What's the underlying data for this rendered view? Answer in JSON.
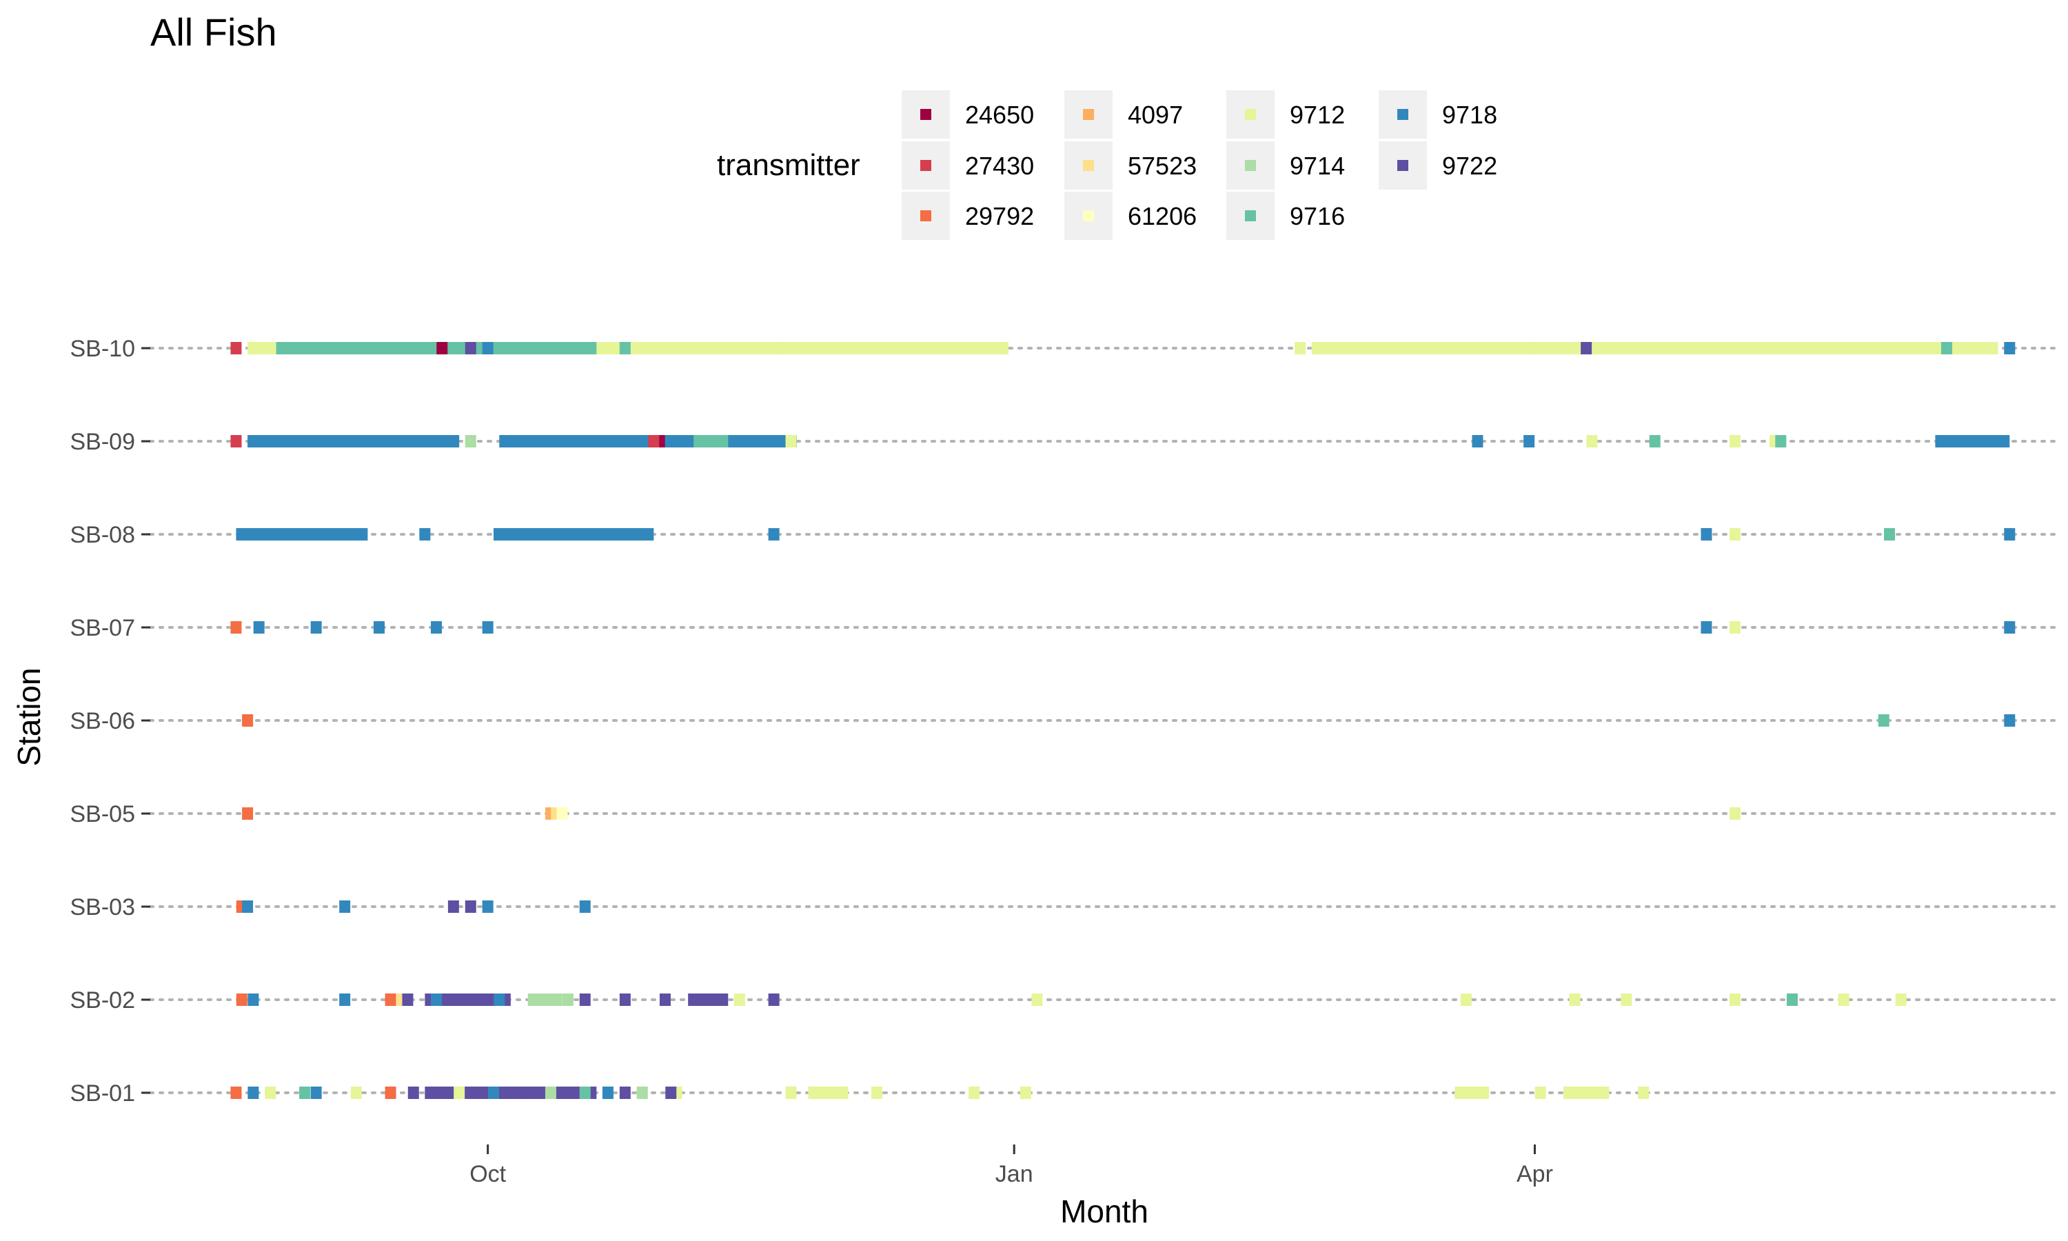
{
  "chart_data": {
    "type": "scatter",
    "title": "All Fish",
    "xlabel": "Month",
    "ylabel": "Station",
    "x_ticks": [
      "Oct",
      "Jan",
      "Apr"
    ],
    "x_axis_range": [
      "2019-08-03",
      "2020-07-02"
    ],
    "categories": [
      "SB-10",
      "SB-09",
      "SB-08",
      "SB-07",
      "SB-06",
      "SB-05",
      "SB-03",
      "SB-02",
      "SB-01"
    ],
    "grid": "horizontal dotted",
    "legend": {
      "title": "transmitter",
      "placement": "top"
    },
    "series": [
      {
        "name": "24650",
        "color": "#9E0142",
        "points": [
          {
            "s": "SB-10",
            "x": "2019-09-23"
          },
          {
            "s": "SB-09",
            "x": "2019-08-18"
          },
          {
            "s": "SB-09",
            "x": "2019-10-31"
          },
          {
            "s": "SB-01",
            "x": "2019-08-18"
          }
        ]
      },
      {
        "name": "27430",
        "color": "#D53E4F",
        "points": [
          {
            "s": "SB-10",
            "x": "2019-08-18"
          },
          {
            "s": "SB-09",
            "x": "2019-08-18"
          },
          {
            "s": "SB-09",
            "x": "2019-10-30"
          }
        ]
      },
      {
        "name": "29792",
        "color": "#F46D43",
        "points": [
          {
            "s": "SB-07",
            "x": "2019-08-18"
          },
          {
            "s": "SB-06",
            "x": "2019-08-20"
          },
          {
            "s": "SB-05",
            "x": "2019-08-20"
          },
          {
            "s": "SB-03",
            "x": "2019-08-19"
          },
          {
            "s": "SB-02",
            "x": "2019-08-19"
          },
          {
            "s": "SB-02",
            "x": "2019-09-14"
          },
          {
            "s": "SB-01",
            "x": "2019-08-18"
          },
          {
            "s": "SB-01",
            "x": "2019-09-14"
          }
        ]
      },
      {
        "name": "4097",
        "color": "#FDAE61",
        "points": [
          {
            "s": "SB-05",
            "x": "2019-10-12"
          }
        ]
      },
      {
        "name": "57523",
        "color": "#FEE08B",
        "points": [
          {
            "s": "SB-05",
            "x": "2019-10-13"
          },
          {
            "s": "SB-02",
            "x": "2019-09-16"
          }
        ]
      },
      {
        "name": "61206",
        "color": "#FFFFBF",
        "points": [
          {
            "s": "SB-05",
            "x": "2019-10-14"
          }
        ]
      },
      {
        "name": "9712",
        "color": "#E6F598",
        "points": [
          {
            "s": "SB-10",
            "x": "2019-11-20"
          },
          {
            "s": "SB-10",
            "x": "2019-12-05"
          },
          {
            "s": "SB-10",
            "x": "2019-12-20"
          },
          {
            "s": "SB-10",
            "x": "2020-02-20"
          },
          {
            "s": "SB-10",
            "x": "2020-03-10"
          },
          {
            "s": "SB-10",
            "x": "2020-04-01"
          },
          {
            "s": "SB-10",
            "x": "2020-04-20"
          },
          {
            "s": "SB-10",
            "x": "2020-05-10"
          },
          {
            "s": "SB-10",
            "x": "2020-06-01"
          },
          {
            "s": "SB-10",
            "x": "2020-06-20"
          },
          {
            "s": "SB-09",
            "x": "2019-11-23"
          },
          {
            "s": "SB-09",
            "x": "2020-04-11"
          },
          {
            "s": "SB-09",
            "x": "2020-05-06"
          },
          {
            "s": "SB-09",
            "x": "2020-05-13"
          },
          {
            "s": "SB-08",
            "x": "2020-05-06"
          },
          {
            "s": "SB-07",
            "x": "2020-05-06"
          },
          {
            "s": "SB-05",
            "x": "2020-05-06"
          },
          {
            "s": "SB-02",
            "x": "2019-11-14"
          },
          {
            "s": "SB-02",
            "x": "2020-01-05"
          },
          {
            "s": "SB-02",
            "x": "2020-03-20"
          },
          {
            "s": "SB-02",
            "x": "2020-04-08"
          },
          {
            "s": "SB-02",
            "x": "2020-04-17"
          },
          {
            "s": "SB-02",
            "x": "2020-05-06"
          },
          {
            "s": "SB-02",
            "x": "2020-05-25"
          },
          {
            "s": "SB-02",
            "x": "2020-06-04"
          },
          {
            "s": "SB-01",
            "x": "2019-08-24"
          },
          {
            "s": "SB-01",
            "x": "2019-09-08"
          },
          {
            "s": "SB-01",
            "x": "2019-09-26"
          },
          {
            "s": "SB-01",
            "x": "2019-11-03"
          },
          {
            "s": "SB-01",
            "x": "2019-11-23"
          },
          {
            "s": "SB-01",
            "x": "2019-12-08"
          },
          {
            "s": "SB-01",
            "x": "2019-12-25"
          },
          {
            "s": "SB-01",
            "x": "2020-01-03"
          },
          {
            "s": "SB-01",
            "x": "2020-03-20"
          },
          {
            "s": "SB-01",
            "x": "2020-04-02"
          },
          {
            "s": "SB-01",
            "x": "2020-04-12"
          },
          {
            "s": "SB-01",
            "x": "2020-04-20"
          }
        ]
      },
      {
        "name": "9714",
        "color": "#ABDDA4",
        "points": [
          {
            "s": "SB-09",
            "x": "2019-09-28"
          },
          {
            "s": "SB-02",
            "x": "2019-10-15"
          },
          {
            "s": "SB-01",
            "x": "2019-10-12"
          },
          {
            "s": "SB-01",
            "x": "2019-10-28"
          }
        ]
      },
      {
        "name": "9716",
        "color": "#66C2A5",
        "points": [
          {
            "s": "SB-10",
            "x": "2019-09-01"
          },
          {
            "s": "SB-10",
            "x": "2019-10-25"
          },
          {
            "s": "SB-10",
            "x": "2020-06-12"
          },
          {
            "s": "SB-09",
            "x": "2019-11-10"
          },
          {
            "s": "SB-09",
            "x": "2020-04-22"
          },
          {
            "s": "SB-09",
            "x": "2020-05-14"
          },
          {
            "s": "SB-06",
            "x": "2020-06-01"
          },
          {
            "s": "SB-08",
            "x": "2020-06-02"
          },
          {
            "s": "SB-02",
            "x": "2020-05-16"
          },
          {
            "s": "SB-01",
            "x": "2019-08-30"
          },
          {
            "s": "SB-01",
            "x": "2019-10-18"
          }
        ]
      },
      {
        "name": "9718",
        "color": "#3288BD",
        "points": [
          {
            "s": "SB-10",
            "x": "2019-10-01"
          },
          {
            "s": "SB-10",
            "x": "2020-06-23"
          },
          {
            "s": "SB-09",
            "x": "2019-09-01"
          },
          {
            "s": "SB-09",
            "x": "2019-09-20"
          },
          {
            "s": "SB-09",
            "x": "2019-10-15"
          },
          {
            "s": "SB-09",
            "x": "2019-11-05"
          },
          {
            "s": "SB-09",
            "x": "2019-11-15"
          },
          {
            "s": "SB-09",
            "x": "2020-03-22"
          },
          {
            "s": "SB-09",
            "x": "2020-03-31"
          },
          {
            "s": "SB-09",
            "x": "2020-06-12"
          },
          {
            "s": "SB-08",
            "x": "2019-08-25"
          },
          {
            "s": "SB-08",
            "x": "2019-09-20"
          },
          {
            "s": "SB-08",
            "x": "2019-10-08"
          },
          {
            "s": "SB-08",
            "x": "2019-10-25"
          },
          {
            "s": "SB-08",
            "x": "2019-11-20"
          },
          {
            "s": "SB-08",
            "x": "2020-05-01"
          },
          {
            "s": "SB-08",
            "x": "2020-06-23"
          },
          {
            "s": "SB-07",
            "x": "2019-08-22"
          },
          {
            "s": "SB-07",
            "x": "2019-09-01"
          },
          {
            "s": "SB-07",
            "x": "2019-09-12"
          },
          {
            "s": "SB-07",
            "x": "2019-09-22"
          },
          {
            "s": "SB-07",
            "x": "2019-10-01"
          },
          {
            "s": "SB-07",
            "x": "2020-05-01"
          },
          {
            "s": "SB-07",
            "x": "2020-06-23"
          },
          {
            "s": "SB-06",
            "x": "2020-06-23"
          },
          {
            "s": "SB-03",
            "x": "2019-08-20"
          },
          {
            "s": "SB-03",
            "x": "2019-09-06"
          },
          {
            "s": "SB-03",
            "x": "2019-10-01"
          },
          {
            "s": "SB-03",
            "x": "2019-10-18"
          },
          {
            "s": "SB-02",
            "x": "2019-08-21"
          },
          {
            "s": "SB-02",
            "x": "2019-09-06"
          },
          {
            "s": "SB-02",
            "x": "2019-09-22"
          },
          {
            "s": "SB-02",
            "x": "2019-10-03"
          },
          {
            "s": "SB-01",
            "x": "2019-08-21"
          },
          {
            "s": "SB-01",
            "x": "2019-09-01"
          },
          {
            "s": "SB-01",
            "x": "2019-10-02"
          },
          {
            "s": "SB-01",
            "x": "2019-10-22"
          }
        ]
      },
      {
        "name": "9722",
        "color": "#5E4FA2",
        "points": [
          {
            "s": "SB-10",
            "x": "2019-09-28"
          },
          {
            "s": "SB-10",
            "x": "2020-04-10"
          },
          {
            "s": "SB-03",
            "x": "2019-09-25"
          },
          {
            "s": "SB-03",
            "x": "2019-09-28"
          },
          {
            "s": "SB-02",
            "x": "2019-09-17"
          },
          {
            "s": "SB-02",
            "x": "2019-09-26"
          },
          {
            "s": "SB-02",
            "x": "2019-10-18"
          },
          {
            "s": "SB-02",
            "x": "2019-10-25"
          },
          {
            "s": "SB-02",
            "x": "2019-11-01"
          },
          {
            "s": "SB-02",
            "x": "2019-11-08"
          },
          {
            "s": "SB-02",
            "x": "2019-11-20"
          },
          {
            "s": "SB-01",
            "x": "2019-09-18"
          },
          {
            "s": "SB-01",
            "x": "2019-10-06"
          },
          {
            "s": "SB-01",
            "x": "2019-10-25"
          },
          {
            "s": "SB-01",
            "x": "2019-11-02"
          }
        ]
      }
    ],
    "detection_runs": [
      {
        "s": "SB-10",
        "color": "#E6F598",
        "from": "2019-08-20",
        "to": "2019-12-31"
      },
      {
        "s": "SB-10",
        "color": "#E6F598",
        "from": "2020-02-22",
        "to": "2020-06-20"
      },
      {
        "s": "SB-10",
        "color": "#66C2A5",
        "from": "2019-08-25",
        "to": "2019-10-20"
      },
      {
        "s": "SB-09",
        "color": "#3288BD",
        "from": "2019-08-20",
        "to": "2019-09-26"
      },
      {
        "s": "SB-09",
        "color": "#3288BD",
        "from": "2019-10-03",
        "to": "2019-11-24"
      },
      {
        "s": "SB-09",
        "color": "#3288BD",
        "from": "2020-06-10",
        "to": "2020-06-23"
      },
      {
        "s": "SB-09",
        "color": "#66C2A5",
        "from": "2019-11-05",
        "to": "2019-11-12"
      },
      {
        "s": "SB-08",
        "color": "#3288BD",
        "from": "2019-08-18",
        "to": "2019-09-10"
      },
      {
        "s": "SB-08",
        "color": "#3288BD",
        "from": "2019-10-02",
        "to": "2019-10-30"
      },
      {
        "s": "SB-02",
        "color": "#5E4FA2",
        "from": "2019-09-20",
        "to": "2019-10-05"
      },
      {
        "s": "SB-02",
        "color": "#ABDDA4",
        "from": "2019-10-08",
        "to": "2019-10-14"
      },
      {
        "s": "SB-02",
        "color": "#5E4FA2",
        "from": "2019-11-05",
        "to": "2019-11-12"
      },
      {
        "s": "SB-01",
        "color": "#5E4FA2",
        "from": "2019-09-20",
        "to": "2019-10-20"
      },
      {
        "s": "SB-01",
        "color": "#E6F598",
        "from": "2019-11-26",
        "to": "2019-12-03"
      },
      {
        "s": "SB-01",
        "color": "#E6F598",
        "from": "2020-03-18",
        "to": "2020-03-24"
      },
      {
        "s": "SB-01",
        "color": "#E6F598",
        "from": "2020-04-06",
        "to": "2020-04-14"
      }
    ]
  }
}
